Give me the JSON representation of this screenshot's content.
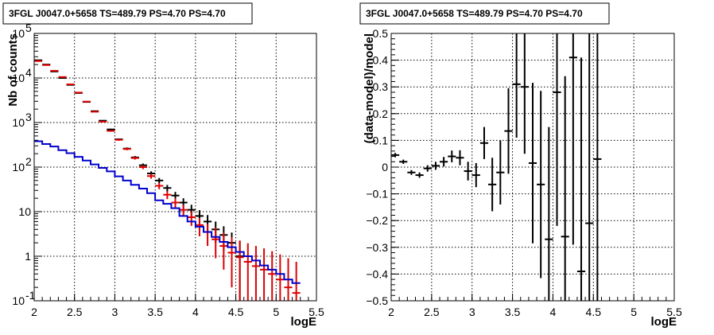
{
  "chart_data": [
    {
      "type": "line",
      "title": "3FGL J0047.0+5658 TS=489.79 PS=4.70 PS=4.70",
      "xlabel": "logE",
      "ylabel": "Nb of counts",
      "xlim": [
        2,
        5.5
      ],
      "ylim": [
        0.1,
        100000
      ],
      "yscale": "log",
      "grid": true,
      "x_ticks": [
        "2",
        "2.5",
        "3",
        "3.5",
        "4",
        "4.5",
        "5",
        "5.5"
      ],
      "y_ticks": [
        "10^{-1}",
        "1",
        "10",
        "10^{2}",
        "10^{3}",
        "10^{4}",
        "10^{5}"
      ],
      "bin_width": 0.1,
      "colors": {
        "data": "#000000",
        "total_model": "#dd0000",
        "source_model": "#0000cc"
      },
      "series": [
        {
          "style": "errorbar",
          "x": [
            2.05,
            2.15,
            2.25,
            2.35,
            2.45,
            2.55,
            2.65,
            2.75,
            2.85,
            2.95,
            3.05,
            3.15,
            3.25,
            3.35,
            3.45,
            3.55,
            3.65,
            3.75,
            3.85,
            3.95,
            4.05,
            4.15,
            4.25,
            4.35,
            4.45,
            4.55
          ],
          "values": [
            25000,
            20000,
            14000,
            10000,
            7000,
            4600,
            2900,
            1800,
            1100,
            700,
            420,
            260,
            165,
            110,
            72,
            50,
            34,
            23,
            16,
            11,
            8,
            6,
            4,
            3,
            2,
            1
          ],
          "err_low": [
            160,
            140,
            120,
            100,
            84,
            68,
            54,
            42,
            33,
            26,
            20,
            16,
            12.8,
            10.4,
            8.4,
            7,
            5.8,
            4.8,
            4,
            3.3,
            2.8,
            2.4,
            2,
            1.7,
            1.4,
            0.9
          ],
          "err_high": [
            160,
            140,
            120,
            100,
            84,
            68,
            54,
            42,
            33,
            26,
            20,
            16,
            12.8,
            10.4,
            8.4,
            7,
            5.8,
            4.8,
            4,
            3.3,
            2.8,
            2.4,
            2,
            1.7,
            1.4,
            1.2
          ]
        },
        {
          "style": "errorbar",
          "x": [
            2.05,
            2.15,
            2.25,
            2.35,
            2.45,
            2.55,
            2.65,
            2.75,
            2.85,
            2.95,
            3.05,
            3.15,
            3.25,
            3.35,
            3.45,
            3.55,
            3.65,
            3.75,
            3.85,
            3.95,
            4.05,
            4.15,
            4.25,
            4.35,
            4.45,
            4.55,
            4.65,
            4.75,
            4.85,
            4.95,
            5.05,
            5.15,
            5.25
          ],
          "values": [
            24000,
            19500,
            14500,
            10500,
            7200,
            4700,
            2950,
            1750,
            1050,
            650,
            410,
            255,
            160,
            100,
            63,
            38,
            24,
            16,
            11,
            7.5,
            5,
            3.5,
            2.4,
            1.7,
            1.2,
            0.95,
            0.75,
            0.6,
            0.5,
            0.4,
            0.3,
            0.2,
            0.15
          ],
          "err_low": [
            155,
            140,
            120,
            102,
            85,
            69,
            54,
            42,
            32,
            25.5,
            20,
            16,
            12.6,
            10,
            8,
            6.2,
            4.9,
            4,
            3.3,
            2.7,
            2.2,
            1.8,
            1.5,
            1.2,
            1,
            0.9,
            0.7,
            0.55,
            0.45,
            0.35,
            0.27,
            0.18,
            0.13
          ],
          "err_high": [
            155,
            140,
            120,
            102,
            85,
            69,
            54,
            42,
            32,
            25.5,
            20,
            16,
            12.6,
            10,
            8,
            6.2,
            4.9,
            4,
            3.3,
            2.7,
            2.2,
            1.8,
            2,
            1.7,
            1.5,
            1.3,
            1.2,
            1.1,
            1,
            0.9,
            0.8,
            0.7,
            0.6
          ]
        },
        {
          "style": "step",
          "x": [
            2.05,
            2.15,
            2.25,
            2.35,
            2.45,
            2.55,
            2.65,
            2.75,
            2.85,
            2.95,
            3.05,
            3.15,
            3.25,
            3.35,
            3.45,
            3.55,
            3.65,
            3.75,
            3.85,
            3.95,
            4.05,
            4.15,
            4.25,
            4.35,
            4.45,
            4.55,
            4.65,
            4.75,
            4.85,
            4.95,
            5.05,
            5.15,
            5.25
          ],
          "values": [
            380,
            330,
            290,
            240,
            205,
            170,
            140,
            115,
            96,
            80,
            62,
            50,
            40,
            33,
            26,
            18,
            15,
            12,
            8,
            6,
            4.6,
            3.5,
            2.7,
            2.1,
            1.6,
            1.25,
            1,
            0.8,
            0.62,
            0.5,
            0.4,
            0.3,
            0.25
          ]
        }
      ]
    },
    {
      "type": "scatter",
      "title": "3FGL J0047.0+5658 TS=489.79 PS=4.70 PS=4.70",
      "xlabel": "logE",
      "ylabel": "(data-model)/model",
      "xlim": [
        2,
        5.5
      ],
      "ylim": [
        -0.5,
        0.5
      ],
      "grid": true,
      "x_ticks": [
        "2",
        "2.5",
        "3",
        "3.5",
        "4",
        "4.5",
        "5",
        "5.5"
      ],
      "y_ticks": [
        "-0.5",
        "-0.4",
        "-0.3",
        "-0.2",
        "-0.1",
        "0",
        "0.1",
        "0.2",
        "0.3",
        "0.4",
        "0.5"
      ],
      "bin_width": 0.1,
      "series": [
        {
          "style": "errorbar",
          "x": [
            2.05,
            2.15,
            2.25,
            2.35,
            2.45,
            2.55,
            2.65,
            2.75,
            2.85,
            2.95,
            3.05,
            3.15,
            3.25,
            3.35,
            3.45,
            3.55,
            3.65,
            3.75,
            3.85,
            3.95,
            4.05,
            4.15,
            4.25,
            4.35,
            4.45,
            4.55
          ],
          "values": [
            0.045,
            0.02,
            -0.02,
            -0.03,
            -0.005,
            0.005,
            0.02,
            0.04,
            0.035,
            -0.015,
            -0.03,
            0.09,
            -0.065,
            -0.02,
            0.135,
            0.31,
            0.3,
            0.015,
            -0.065,
            -0.27,
            0.28,
            -0.26,
            0.41,
            -0.39,
            -0.21,
            0.03
          ],
          "err": [
            0.008,
            0.008,
            0.009,
            0.01,
            0.012,
            0.015,
            0.018,
            0.022,
            0.028,
            0.035,
            0.045,
            0.06,
            0.1,
            0.12,
            0.16,
            0.2,
            0.25,
            0.3,
            0.35,
            0.42,
            0.5,
            0.6,
            0.7,
            0.8,
            0.9,
            1.0
          ]
        }
      ]
    }
  ]
}
